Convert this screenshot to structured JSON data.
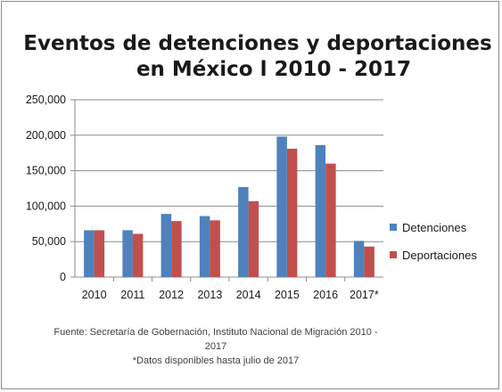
{
  "chart_data": {
    "type": "bar",
    "title_lines": [
      "Eventos de detenciones y deportaciones",
      "en México l 2010 - 2017"
    ],
    "categories": [
      "2010",
      "2011",
      "2012",
      "2013",
      "2014",
      "2015",
      "2016",
      "2017*"
    ],
    "series": [
      {
        "name": "Detenciones",
        "color": "#4f81bd",
        "values": [
          66000,
          66000,
          89000,
          86000,
          127000,
          198000,
          186000,
          51000
        ]
      },
      {
        "name": "Deportaciones",
        "color": "#c0504d",
        "values": [
          66000,
          61000,
          79000,
          80000,
          107000,
          181000,
          160000,
          43000
        ]
      }
    ],
    "ylim": [
      0,
      250000
    ],
    "yticks": [
      0,
      50000,
      100000,
      150000,
      200000,
      250000
    ],
    "ytick_labels": [
      "0",
      "50,000",
      "100,000",
      "150,000",
      "200,000",
      "250,000"
    ],
    "grid": true,
    "legend_position": "right",
    "source_lines": [
      "Fuente: Secretaría de Gobernación, Instituto Nacional de Migración 2010 -",
      "2017",
      "*Datos disponibles hasta julio de 2017"
    ]
  }
}
